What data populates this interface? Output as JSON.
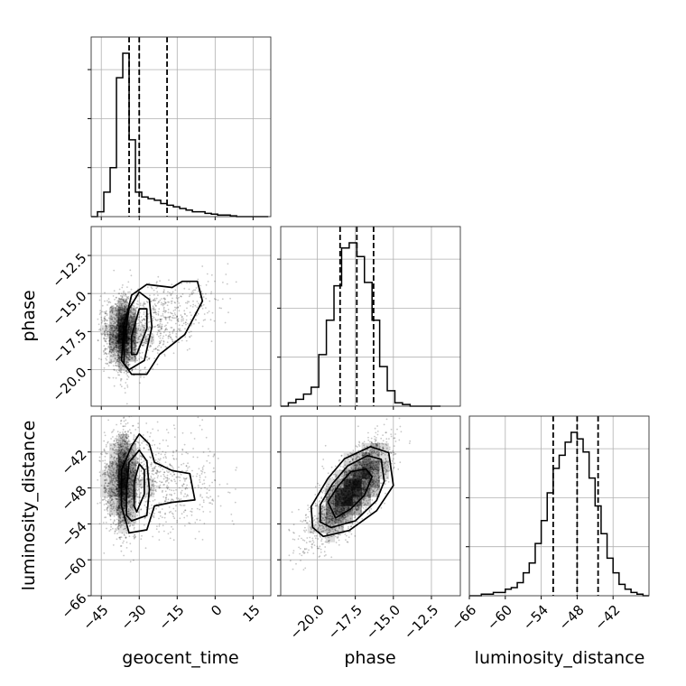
{
  "chart_data": {
    "type": "corner",
    "parameters": [
      {
        "name": "geocent_time",
        "label": "geocent_time",
        "range": [
          -49,
          22
        ],
        "ticks": [
          -45,
          -30,
          -15,
          0,
          15
        ],
        "tick_labels": [
          "−45",
          "−30",
          "−15",
          "0",
          "15"
        ],
        "quantiles": [
          -34,
          -30,
          -19
        ],
        "hist": {
          "edges": [
            -49,
            -46.5,
            -44,
            -41.5,
            -39,
            -36.5,
            -34,
            -31.5,
            -29,
            -26.5,
            -24,
            -21.5,
            -19,
            -16.5,
            -14,
            -11.5,
            -9,
            -6.5,
            -4,
            -1.5,
            1,
            3.5,
            6,
            8.5,
            11,
            13.5,
            16,
            18.5,
            21
          ],
          "counts": [
            0,
            0.03,
            0.15,
            0.3,
            0.85,
            1.0,
            0.47,
            0.15,
            0.12,
            0.11,
            0.1,
            0.08,
            0.07,
            0.06,
            0.05,
            0.04,
            0.03,
            0.03,
            0.02,
            0.015,
            0.01,
            0.01,
            0.005,
            0,
            0,
            0,
            0,
            0
          ]
        }
      },
      {
        "name": "phase",
        "label": "phase",
        "range": [
          -22.4,
          -10.6
        ],
        "ticks": [
          -20.0,
          -17.5,
          -15.0,
          -12.5
        ],
        "tick_labels": [
          "−20.0",
          "−17.5",
          "−15.0",
          "−12.5"
        ],
        "quantiles": [
          -18.5,
          -17.4,
          -16.3
        ],
        "hist": {
          "edges": [
            -22.4,
            -21.9,
            -21.4,
            -20.9,
            -20.4,
            -19.9,
            -19.4,
            -18.9,
            -18.4,
            -17.9,
            -17.4,
            -16.9,
            -16.4,
            -15.9,
            -15.4,
            -14.9,
            -14.4,
            -13.9,
            -13.4,
            -12.9,
            -12.4,
            -11.9
          ],
          "counts": [
            0,
            0.02,
            0.04,
            0.07,
            0.11,
            0.3,
            0.5,
            0.7,
            0.92,
            0.95,
            0.87,
            0.72,
            0.5,
            0.23,
            0.09,
            0.02,
            0.01,
            0,
            0,
            0,
            0
          ]
        }
      },
      {
        "name": "luminosity_distance",
        "label": "luminosity_distance",
        "range": [
          -66,
          -36
        ],
        "ticks": [
          -66,
          -60,
          -54,
          -48,
          -42
        ],
        "tick_labels": [
          "−66",
          "−60",
          "−54",
          "−48",
          "−42"
        ],
        "quantiles": [
          -52,
          -48,
          -44.5
        ],
        "hist": {
          "edges": [
            -66,
            -64,
            -62,
            -60,
            -59,
            -58,
            -57,
            -56,
            -55,
            -54,
            -53,
            -52,
            -51,
            -50,
            -49,
            -48,
            -47,
            -46,
            -45,
            -44,
            -43,
            -42,
            -41,
            -40,
            -39,
            -38,
            -37,
            -36
          ],
          "counts": [
            0,
            0.01,
            0.02,
            0.04,
            0.05,
            0.08,
            0.14,
            0.2,
            0.32,
            0.46,
            0.63,
            0.78,
            0.86,
            0.94,
            1.0,
            0.96,
            0.88,
            0.72,
            0.55,
            0.38,
            0.23,
            0.14,
            0.07,
            0.04,
            0.02,
            0.01,
            0
          ]
        }
      }
    ],
    "correlations": {
      "geocent_time__phase": {
        "center": [
          -30,
          -17.6
        ],
        "tail_slope": 0.075,
        "contours": [
          [
            [
              -31,
              -19.0
            ],
            [
              -27,
              -17.3
            ],
            [
              -27,
              -16.0
            ],
            [
              -30,
              -16.0
            ],
            [
              -33,
              -17.8
            ],
            [
              -33,
              -19.0
            ],
            [
              -31,
              -19.0
            ]
          ],
          [
            [
              -33,
              -20.3
            ],
            [
              -27,
              -20.3
            ],
            [
              -22,
              -19.0
            ],
            [
              -12,
              -17.7
            ],
            [
              -5,
              -15.5
            ],
            [
              -7,
              -14.2
            ],
            [
              -13,
              -14.2
            ],
            [
              -17,
              -14.6
            ],
            [
              -27,
              -14.4
            ],
            [
              -33,
              -15.1
            ],
            [
              -36,
              -17.1
            ],
            [
              -37,
              -19.4
            ],
            [
              -33,
              -20.3
            ]
          ],
          [
            [
              -34,
              -20.0
            ],
            [
              -28,
              -19.4
            ],
            [
              -25,
              -17.2
            ],
            [
              -26,
              -15.4
            ],
            [
              -30,
              -14.9
            ],
            [
              -34,
              -16.0
            ],
            [
              -36,
              -18.0
            ],
            [
              -36,
              -19.6
            ],
            [
              -34,
              -20.0
            ]
          ]
        ]
      },
      "geocent_time__luminosity_distance": {
        "center": [
          -30,
          -47
        ],
        "contours": [
          [
            [
              -31,
              -52.0
            ],
            [
              -28,
              -49.0
            ],
            [
              -28,
              -45.0
            ],
            [
              -30,
              -44.0
            ],
            [
              -32,
              -47.0
            ],
            [
              -32,
              -51.0
            ],
            [
              -31,
              -52.0
            ]
          ],
          [
            [
              -34,
              -55.5
            ],
            [
              -27,
              -55.0
            ],
            [
              -24,
              -51.0
            ],
            [
              -17,
              -50.4
            ],
            [
              -8,
              -50.0
            ],
            [
              -10,
              -45.6
            ],
            [
              -17,
              -45.1
            ],
            [
              -24,
              -43.7
            ],
            [
              -26,
              -40.7
            ],
            [
              -30,
              -39.0
            ],
            [
              -33,
              -41.0
            ],
            [
              -37,
              -45.0
            ],
            [
              -37,
              -51.0
            ],
            [
              -34,
              -55.5
            ]
          ],
          [
            [
              -33,
              -53.5
            ],
            [
              -27,
              -52.6
            ],
            [
              -26,
              -48.3
            ],
            [
              -27,
              -43.5
            ],
            [
              -30,
              -41.7
            ],
            [
              -34,
              -43.7
            ],
            [
              -35,
              -48.3
            ],
            [
              -35,
              -52.6
            ],
            [
              -33,
              -53.5
            ]
          ]
        ]
      },
      "phase__luminosity_distance": {
        "center": [
          -17.6,
          -48
        ],
        "rho": 0.7,
        "contours": [
          [
            [
              -18.8,
              -53.0
            ],
            [
              -17.8,
              -51.5
            ],
            [
              -16.9,
              -49.2
            ],
            [
              -16.4,
              -46.1
            ],
            [
              -16.8,
              -44.8
            ],
            [
              -17.8,
              -45.3
            ],
            [
              -18.6,
              -47.6
            ],
            [
              -19.3,
              -50.3
            ],
            [
              -18.8,
              -53.0
            ]
          ],
          [
            [
              -19.6,
              -56.1
            ],
            [
              -17.9,
              -55.1
            ],
            [
              -16.1,
              -51.8
            ],
            [
              -15.0,
              -47.6
            ],
            [
              -15.3,
              -42.1
            ],
            [
              -16.5,
              -41.1
            ],
            [
              -18.2,
              -43.1
            ],
            [
              -19.3,
              -46.4
            ],
            [
              -20.4,
              -51.1
            ],
            [
              -20.3,
              -54.6
            ],
            [
              -19.6,
              -56.1
            ]
          ],
          [
            [
              -19.1,
              -54.6
            ],
            [
              -17.5,
              -53.5
            ],
            [
              -16.1,
              -50.1
            ],
            [
              -15.6,
              -46.9
            ],
            [
              -15.8,
              -43.2
            ],
            [
              -16.7,
              -42.6
            ],
            [
              -18.0,
              -44.3
            ],
            [
              -19.0,
              -47.3
            ],
            [
              -19.8,
              -50.8
            ],
            [
              -19.8,
              -53.7
            ],
            [
              -19.1,
              -54.6
            ]
          ]
        ]
      }
    },
    "grid": true,
    "xlabels": [
      "geocent_time",
      "phase",
      "luminosity_distance"
    ],
    "ylabels": [
      "phase",
      "luminosity_distance"
    ]
  }
}
